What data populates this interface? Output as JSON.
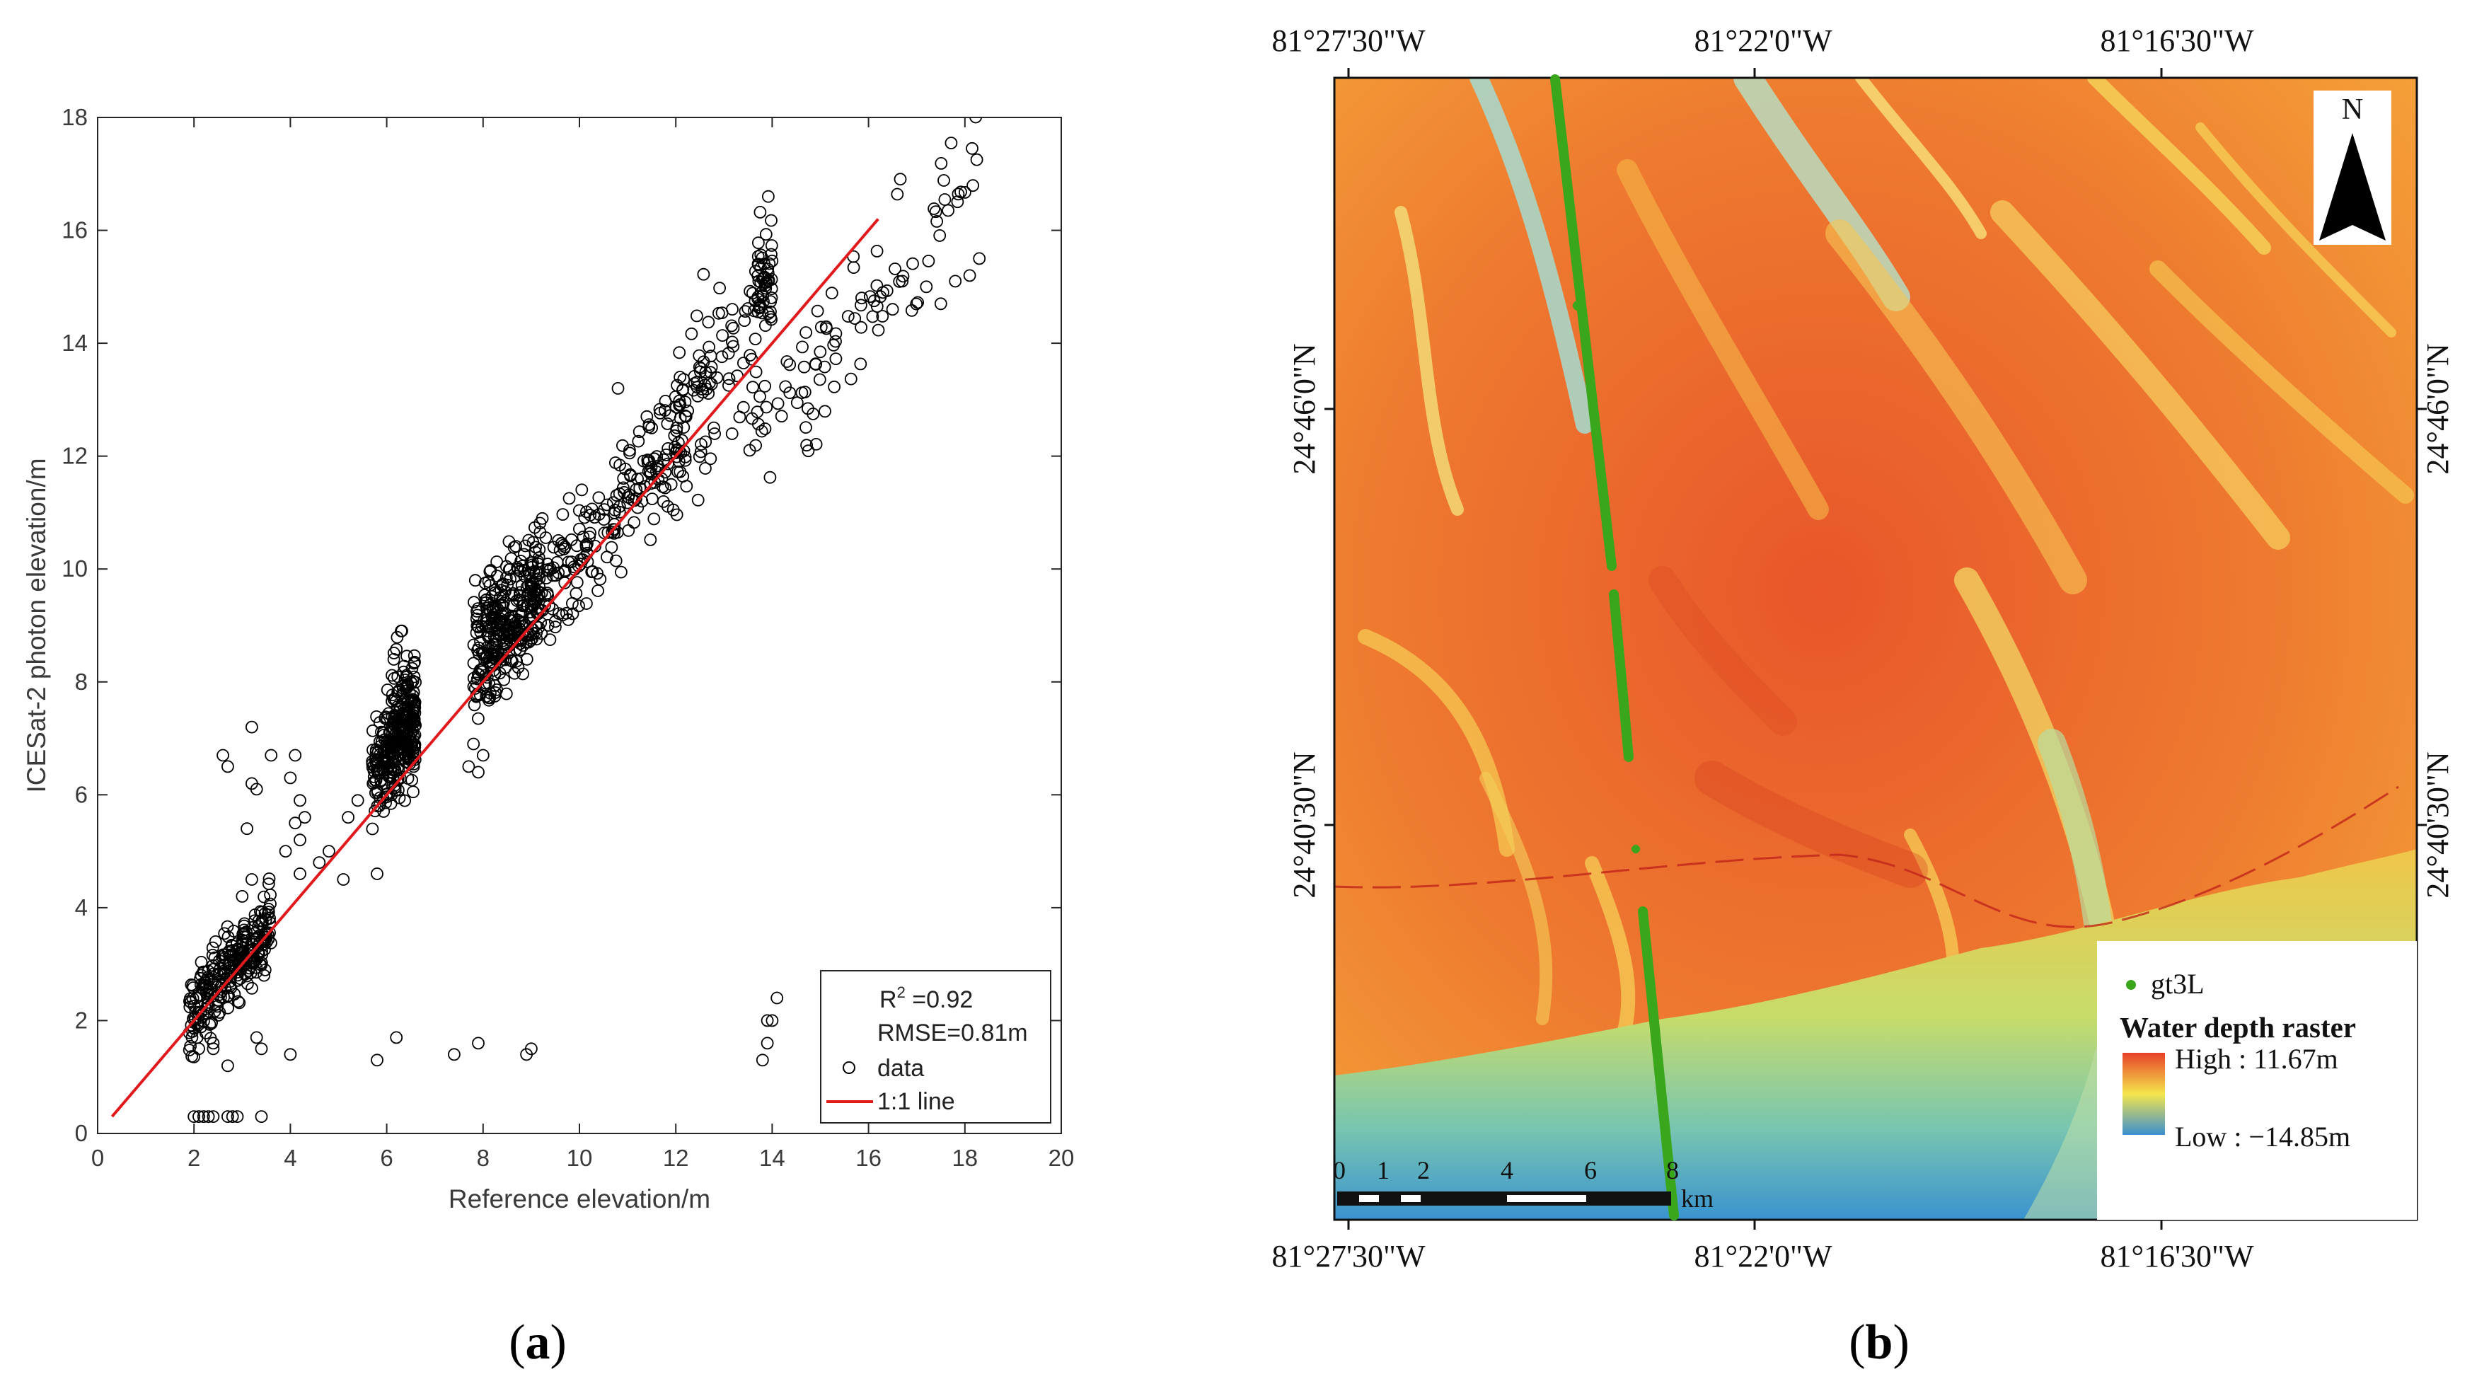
{
  "panels": {
    "a": {
      "caption_open": "(",
      "caption_letter": "a",
      "caption_close": ")"
    },
    "b": {
      "caption_open": "(",
      "caption_letter": "b",
      "caption_close": ")"
    }
  },
  "chart_data": {
    "type": "scatter",
    "title": "",
    "xlabel": "Reference elevation/m",
    "ylabel": "ICESat-2 photon elevation/m",
    "xlim": [
      0,
      20
    ],
    "ylim": [
      0,
      18
    ],
    "xticks": [
      0,
      2,
      4,
      6,
      8,
      10,
      12,
      14,
      16,
      18,
      20
    ],
    "yticks": [
      0,
      2,
      4,
      6,
      8,
      10,
      12,
      14,
      16,
      18
    ],
    "grid": false,
    "legend_position": "bottom-right",
    "stats": {
      "r2_prefix": "R",
      "r2_sup": "2",
      "r2_value": " =0.92",
      "rmse": "RMSE=0.81m"
    },
    "series": [
      {
        "name": "data",
        "marker": "open-circle",
        "color": "#000000",
        "clusters": [
          {
            "x_range": [
              1.9,
              3.6
            ],
            "y_center_offset": 0.15,
            "spread": 0.35,
            "count": 260
          },
          {
            "x_range": [
              5.7,
              6.6
            ],
            "y_center_offset": 0.65,
            "spread": 0.45,
            "count": 240
          },
          {
            "x_range": [
              6.1,
              6.6
            ],
            "y_center_offset": 1.1,
            "spread": 0.6,
            "count": 90
          },
          {
            "x_range": [
              7.8,
              9.2
            ],
            "y_center_offset": 0.6,
            "spread": 0.55,
            "count": 320
          },
          {
            "x_range": [
              9.2,
              12.2
            ],
            "y_center_offset": 0.3,
            "spread": 0.6,
            "count": 200
          },
          {
            "x_range": [
              12.0,
              14.0
            ],
            "y_center_offset": 0.6,
            "spread": 0.7,
            "count": 90
          },
          {
            "x_range": [
              13.7,
              14.0
            ],
            "y_center_offset": 1.3,
            "spread": 0.5,
            "count": 40
          },
          {
            "x_range": [
              13.5,
              18.3
            ],
            "y_center_offset": -1.2,
            "spread": 0.6,
            "count": 90
          }
        ],
        "points": [
          [
            2.6,
            6.7
          ],
          [
            2.7,
            6.5
          ],
          [
            3.2,
            6.2
          ],
          [
            3.3,
            6.1
          ],
          [
            3.2,
            7.2
          ],
          [
            3.6,
            6.7
          ],
          [
            4.1,
            6.7
          ],
          [
            4.0,
            6.3
          ],
          [
            4.2,
            5.9
          ],
          [
            4.1,
            5.5
          ],
          [
            4.2,
            5.2
          ],
          [
            3.9,
            5.0
          ],
          [
            4.3,
            5.6
          ],
          [
            4.2,
            4.6
          ],
          [
            3.1,
            5.4
          ],
          [
            3.0,
            4.2
          ],
          [
            3.2,
            4.5
          ],
          [
            2.4,
            1.6
          ],
          [
            2.1,
            1.5
          ],
          [
            3.4,
            1.5
          ],
          [
            3.3,
            1.7
          ],
          [
            4.0,
            1.4
          ],
          [
            2.7,
            1.2
          ],
          [
            2.4,
            1.5
          ],
          [
            2.0,
            0.3
          ],
          [
            2.1,
            0.3
          ],
          [
            2.2,
            0.3
          ],
          [
            2.3,
            0.3
          ],
          [
            2.4,
            0.3
          ],
          [
            2.7,
            0.3
          ],
          [
            2.8,
            0.3
          ],
          [
            2.9,
            0.3
          ],
          [
            3.4,
            0.3
          ],
          [
            5.8,
            1.3
          ],
          [
            6.2,
            1.7
          ],
          [
            7.4,
            1.4
          ],
          [
            7.9,
            1.6
          ],
          [
            8.9,
            1.4
          ],
          [
            9.0,
            1.5
          ],
          [
            13.8,
            1.3
          ],
          [
            13.9,
            1.6
          ],
          [
            14.0,
            2.0
          ],
          [
            14.1,
            2.4
          ],
          [
            13.9,
            2.0
          ],
          [
            5.8,
            4.6
          ],
          [
            5.1,
            4.5
          ],
          [
            4.8,
            5.0
          ],
          [
            5.2,
            5.6
          ],
          [
            5.4,
            5.9
          ],
          [
            4.6,
            4.8
          ],
          [
            7.7,
            6.5
          ],
          [
            7.9,
            6.4
          ],
          [
            8.0,
            6.7
          ],
          [
            7.8,
            6.9
          ],
          [
            11.4,
            12.7
          ],
          [
            11.5,
            12.5
          ],
          [
            10.8,
            13.2
          ],
          [
            16.5,
            14.6
          ],
          [
            17.2,
            15.0
          ],
          [
            17.8,
            15.1
          ],
          [
            18.3,
            15.5
          ],
          [
            18.1,
            15.2
          ],
          [
            17.5,
            14.7
          ],
          [
            16.7,
            15.1
          ],
          [
            16.3,
            14.9
          ]
        ]
      },
      {
        "name": "1:1 line",
        "type": "line",
        "color": "#e0191c",
        "x": [
          0.3,
          16.2
        ],
        "y": [
          0.3,
          16.2
        ]
      }
    ]
  },
  "map": {
    "lon_labels": [
      "81°27'30\"W",
      "81°22'0\"W",
      "81°16'30\"W"
    ],
    "lat_labels": [
      "24°46'0\"N",
      "24°40'30\"N"
    ],
    "north_label": "N",
    "scalebar": {
      "ticks": [
        "0",
        "1",
        "2",
        "4",
        "6",
        "8"
      ],
      "unit": "km"
    },
    "legend": {
      "track_label": "gt3L",
      "track_color": "#3aa61c",
      "raster_title": "Water depth raster",
      "high_label": "High : 11.67m",
      "low_label": "Low : −14.85m",
      "high_color": "#e8402a",
      "mid_color": "#f4e64c",
      "low_color": "#3a8fcf"
    }
  }
}
